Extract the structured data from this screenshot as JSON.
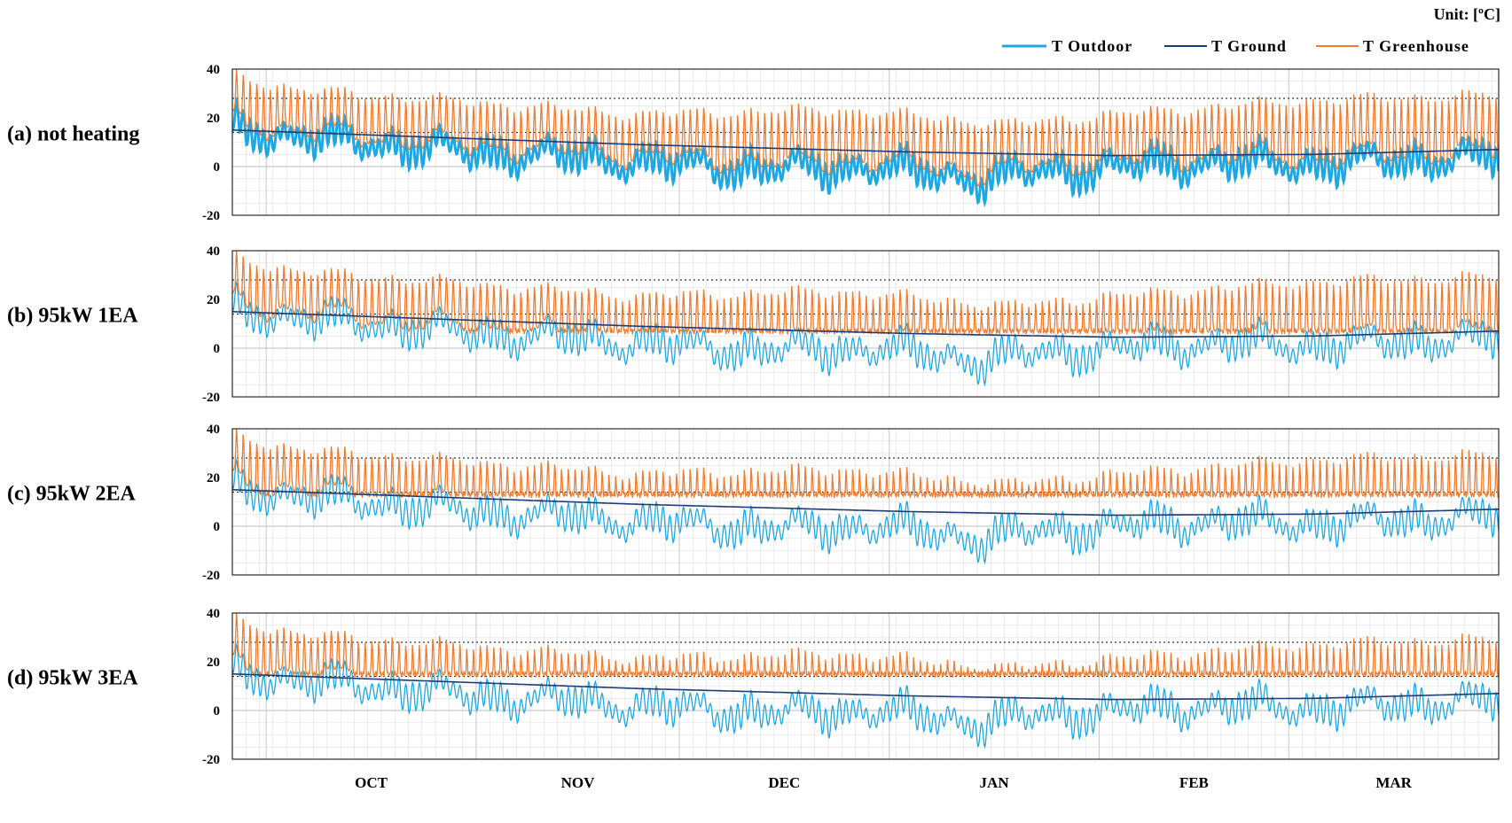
{
  "unit_label": "Unit: [ºC]",
  "legend": [
    {
      "label": "T  Outdoor",
      "color": "#1ea7e0"
    },
    {
      "label": "T  Ground",
      "color": "#1f3b73"
    },
    {
      "label": "T  Greenhouse",
      "color": "#ed7d31"
    }
  ],
  "colors": {
    "outdoor": "#1ea7e0",
    "ground": "#1f3b73",
    "greenhouse": "#ed7d31",
    "dotted_ref": "#333333",
    "grid": "#e0e0e0"
  },
  "chart_data": {
    "type": "line",
    "x_unit": "day",
    "x_labels": [
      "OCT",
      "NOV",
      "DEC",
      "JAN",
      "FEB",
      "MAR"
    ],
    "x_range": [
      "Sep 26",
      "Mar 31"
    ],
    "ylim": [
      -20,
      40
    ],
    "y_ticks": [
      -20,
      0,
      20,
      40
    ],
    "reference_lines": [
      14,
      28
    ],
    "grid": true,
    "legend_position": "top-right",
    "series_names": [
      "T  Outdoor",
      "T  Ground",
      "T  Greenhouse"
    ],
    "ground_temperature_by_day": {
      "day": [
        0,
        30,
        60,
        100,
        130,
        160,
        187
      ],
      "value": [
        15,
        12,
        9,
        6,
        4.5,
        5,
        7
      ]
    },
    "outdoor_daily_mean_by_day": {
      "day": [
        0,
        10,
        20,
        35,
        50,
        65,
        80,
        95,
        110,
        120,
        130,
        145,
        160,
        175,
        187
      ],
      "value": [
        16,
        12,
        10,
        6,
        4,
        1,
        -1,
        0,
        -5,
        -2,
        0,
        2,
        1,
        3,
        4
      ]
    },
    "outdoor_daily_amplitude": 6,
    "greenhouse_daily_peak_by_day": {
      "day": [
        0,
        10,
        30,
        60,
        90,
        115,
        130,
        160,
        187
      ],
      "value": [
        38,
        32,
        28,
        22,
        24,
        18,
        22,
        28,
        30
      ]
    },
    "panels": [
      {
        "label": "(a) not heating",
        "heating_kw": 0,
        "units": 0,
        "greenhouse_min": null
      },
      {
        "label": "(b) 95kW 1EA",
        "heating_kw": 95,
        "units": 1,
        "greenhouse_min": 7
      },
      {
        "label": "(c) 95kW 2EA",
        "heating_kw": 95,
        "units": 2,
        "greenhouse_min": 13
      },
      {
        "label": "(d) 95kW 3EA",
        "heating_kw": 95,
        "units": 3,
        "greenhouse_min": 15
      }
    ]
  }
}
